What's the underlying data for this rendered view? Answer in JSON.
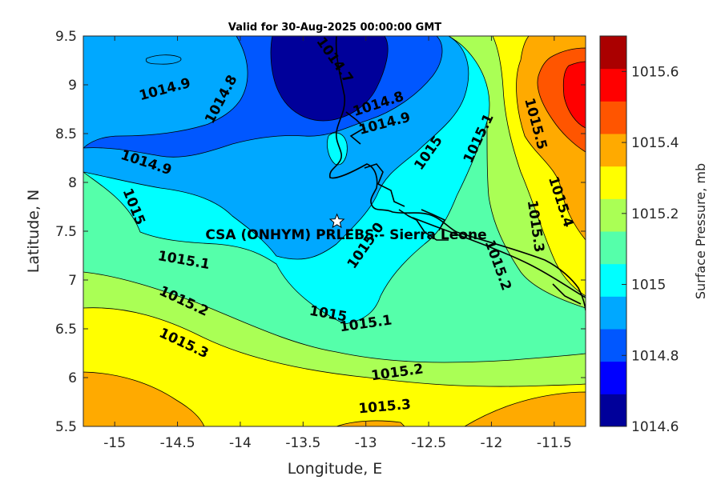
{
  "title": "Valid for 30-Aug-2025 00:00:00 GMT",
  "xlabel": "Longitude, E",
  "ylabel": "Latitude, N",
  "colorbar_label": "Surface Pressure, mb",
  "site_label": "CSA (ONHYM) PRLEBS  - Sierra Leone",
  "station": {
    "lon": -13.23,
    "lat": 7.6
  },
  "x_ticks": [
    "-15",
    "-14.5",
    "-14",
    "-13.5",
    "-13",
    "-12.5",
    "-12",
    "-11.5"
  ],
  "y_ticks": [
    "9.5",
    "9",
    "8.5",
    "8",
    "7.5",
    "7",
    "6.5",
    "6",
    "5.5"
  ],
  "colorbar_ticks": [
    "1015.6",
    "1015.4",
    "1015.2",
    "1015",
    "1014.8",
    "1014.6"
  ],
  "colorbar_colors": [
    "#00009a",
    "#0000ff",
    "#0057ff",
    "#00a8ff",
    "#00ffff",
    "#55ffaa",
    "#aaff55",
    "#ffff00",
    "#ffaa00",
    "#ff5500",
    "#ff0000",
    "#aa0000"
  ],
  "contour_labels": [
    {
      "text": "1014.9",
      "lon": -14.6,
      "lat": 8.95,
      "rot": -15
    },
    {
      "text": "1014.8",
      "lon": -14.15,
      "lat": 8.85,
      "rot": -62
    },
    {
      "text": "1014.7",
      "lon": -13.25,
      "lat": 9.25,
      "rot": 55
    },
    {
      "text": "1014.8",
      "lon": -12.9,
      "lat": 8.8,
      "rot": -18
    },
    {
      "text": "1014.9",
      "lon": -12.85,
      "lat": 8.6,
      "rot": -15
    },
    {
      "text": "1014.9",
      "lon": -14.75,
      "lat": 8.2,
      "rot": 18
    },
    {
      "text": "1015",
      "lon": -12.5,
      "lat": 8.3,
      "rot": -55
    },
    {
      "text": "1015.1",
      "lon": -12.1,
      "lat": 8.45,
      "rot": -65
    },
    {
      "text": "1015.5",
      "lon": -11.65,
      "lat": 8.6,
      "rot": 75
    },
    {
      "text": "1015",
      "lon": -14.85,
      "lat": 7.75,
      "rot": 68
    },
    {
      "text": "1015.0",
      "lon": -13.0,
      "lat": 7.35,
      "rot": -55
    },
    {
      "text": "1015.4",
      "lon": -11.45,
      "lat": 7.8,
      "rot": 72
    },
    {
      "text": "1015.3",
      "lon": -11.65,
      "lat": 7.55,
      "rot": 82
    },
    {
      "text": "1015.2",
      "lon": -11.95,
      "lat": 7.15,
      "rot": 70
    },
    {
      "text": "1015.1",
      "lon": -14.45,
      "lat": 7.2,
      "rot": 10
    },
    {
      "text": "1015.2",
      "lon": -14.45,
      "lat": 6.78,
      "rot": 25
    },
    {
      "text": "1015",
      "lon": -13.3,
      "lat": 6.65,
      "rot": 10
    },
    {
      "text": "1015.1",
      "lon": -13.0,
      "lat": 6.55,
      "rot": -8
    },
    {
      "text": "1015.3",
      "lon": -14.45,
      "lat": 6.35,
      "rot": 25
    },
    {
      "text": "1015.2",
      "lon": -12.75,
      "lat": 6.05,
      "rot": -8
    },
    {
      "text": "1015.3",
      "lon": -12.85,
      "lat": 5.7,
      "rot": -5
    }
  ]
}
